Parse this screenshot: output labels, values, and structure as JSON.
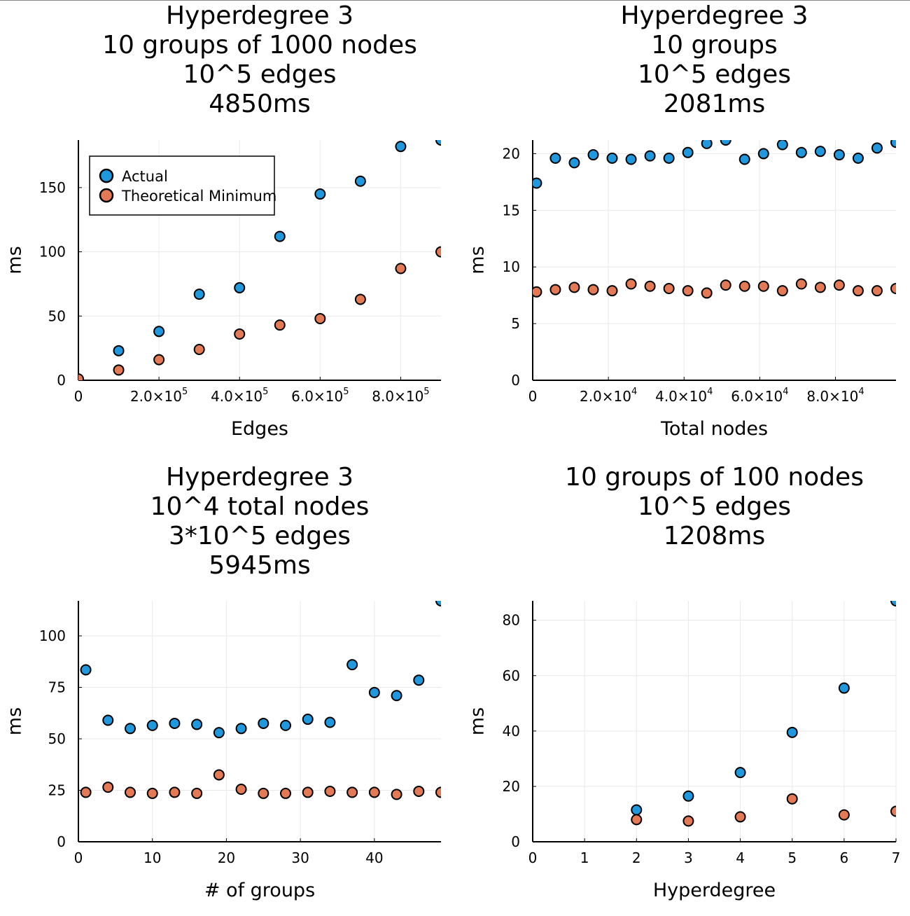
{
  "colors": {
    "actual": "#1f98dd",
    "theoretical": "#e37a55",
    "marker_edge": "#000000"
  },
  "legend": {
    "placement": "top-left",
    "entries": [
      "Actual",
      "Theoretical Minimum"
    ]
  },
  "chart_data": [
    {
      "type": "scatter",
      "title": [
        "Hyperdegree 3",
        "10 groups of 1000 nodes",
        "10^5 edges",
        "4850ms"
      ],
      "xlabel": "Edges",
      "ylabel": "ms",
      "xlim": [
        0,
        900000
      ],
      "ylim": [
        0,
        187
      ],
      "x_tick_values": [
        0,
        200000,
        400000,
        600000,
        800000
      ],
      "x_tick_labels": [
        {
          "base": "0",
          "exp": ""
        },
        {
          "base": "2.0×10",
          "exp": "5"
        },
        {
          "base": "4.0×10",
          "exp": "5"
        },
        {
          "base": "6.0×10",
          "exp": "5"
        },
        {
          "base": "8.0×10",
          "exp": "5"
        }
      ],
      "y_ticks": [
        0,
        50,
        100,
        150
      ],
      "grid": true,
      "legend": true,
      "series": [
        {
          "name": "Actual",
          "x": [
            0,
            100000,
            200000,
            300000,
            400000,
            500000,
            600000,
            700000,
            800000,
            900000
          ],
          "y": [
            0,
            23,
            38,
            67,
            72,
            112,
            145,
            155,
            182,
            187
          ]
        },
        {
          "name": "Theoretical Minimum",
          "x": [
            0,
            100000,
            200000,
            300000,
            400000,
            500000,
            600000,
            700000,
            800000,
            900000
          ],
          "y": [
            1,
            8,
            16,
            24,
            36,
            43,
            48,
            63,
            87,
            100
          ]
        }
      ]
    },
    {
      "type": "scatter",
      "title": [
        "Hyperdegree 3",
        "10 groups",
        "10^5 edges",
        "2081ms"
      ],
      "xlabel": "Total nodes",
      "ylabel": "ms",
      "xlim": [
        0,
        96000
      ],
      "ylim": [
        0,
        21.2
      ],
      "x_tick_values": [
        0,
        20000,
        40000,
        60000,
        80000
      ],
      "x_tick_labels": [
        {
          "base": "0",
          "exp": ""
        },
        {
          "base": "2.0×10",
          "exp": "4"
        },
        {
          "base": "4.0×10",
          "exp": "4"
        },
        {
          "base": "6.0×10",
          "exp": "4"
        },
        {
          "base": "8.0×10",
          "exp": "4"
        }
      ],
      "y_ticks": [
        0,
        5,
        10,
        15,
        20
      ],
      "grid": true,
      "legend": false,
      "series": [
        {
          "name": "Actual",
          "x": [
            1000,
            6000,
            11000,
            16000,
            21000,
            26000,
            31000,
            36000,
            41000,
            46000,
            51000,
            56000,
            61000,
            66000,
            71000,
            76000,
            81000,
            86000,
            91000,
            96000
          ],
          "y": [
            17.4,
            19.6,
            19.2,
            19.9,
            19.6,
            19.5,
            19.8,
            19.6,
            20.1,
            20.9,
            21.2,
            19.5,
            20.0,
            20.8,
            20.1,
            20.2,
            19.9,
            19.6,
            20.5,
            21.0
          ]
        },
        {
          "name": "Theoretical Minimum",
          "x": [
            1000,
            6000,
            11000,
            16000,
            21000,
            26000,
            31000,
            36000,
            41000,
            46000,
            51000,
            56000,
            61000,
            66000,
            71000,
            76000,
            81000,
            86000,
            91000,
            96000
          ],
          "y": [
            7.8,
            8.0,
            8.2,
            8.0,
            7.9,
            8.5,
            8.3,
            8.1,
            7.9,
            7.7,
            8.4,
            8.3,
            8.3,
            7.9,
            8.5,
            8.2,
            8.4,
            7.9,
            7.9,
            8.1
          ]
        }
      ]
    },
    {
      "type": "scatter",
      "title": [
        "Hyperdegree 3",
        "10^4 total nodes",
        "3*10^5 edges",
        "5945ms"
      ],
      "xlabel": "# of groups",
      "ylabel": "ms",
      "xlim": [
        0,
        49
      ],
      "ylim": [
        0,
        117
      ],
      "x_tick_values": [
        0,
        10,
        20,
        30,
        40
      ],
      "x_tick_labels": [
        {
          "base": "0",
          "exp": ""
        },
        {
          "base": "10",
          "exp": ""
        },
        {
          "base": "20",
          "exp": ""
        },
        {
          "base": "30",
          "exp": ""
        },
        {
          "base": "40",
          "exp": ""
        }
      ],
      "y_ticks": [
        0,
        25,
        50,
        75,
        100
      ],
      "grid": true,
      "legend": false,
      "series": [
        {
          "name": "Actual",
          "x": [
            1,
            4,
            7,
            10,
            13,
            16,
            19,
            22,
            25,
            28,
            31,
            34,
            37,
            40,
            43,
            46,
            49
          ],
          "y": [
            83.5,
            59,
            55,
            56.5,
            57.5,
            57,
            53,
            55,
            57.5,
            56.5,
            59.5,
            58,
            86,
            72.5,
            71,
            78.5,
            117
          ]
        },
        {
          "name": "Theoretical Minimum",
          "x": [
            1,
            4,
            7,
            10,
            13,
            16,
            19,
            22,
            25,
            28,
            31,
            34,
            37,
            40,
            43,
            46,
            49
          ],
          "y": [
            24,
            26.5,
            24,
            23.5,
            24,
            23.5,
            32.5,
            25.5,
            23.5,
            23.5,
            24,
            24.5,
            24,
            24,
            23,
            24.5,
            24
          ]
        }
      ]
    },
    {
      "type": "scatter",
      "title": [
        "10 groups of 100 nodes",
        "10^5 edges",
        "1208ms"
      ],
      "xlabel": "Hyperdegree",
      "ylabel": "ms",
      "xlim": [
        0,
        7
      ],
      "ylim": [
        0,
        87
      ],
      "x_tick_values": [
        0,
        1,
        2,
        3,
        4,
        5,
        6,
        7
      ],
      "x_tick_labels": [
        {
          "base": "0",
          "exp": ""
        },
        {
          "base": "1",
          "exp": ""
        },
        {
          "base": "2",
          "exp": ""
        },
        {
          "base": "3",
          "exp": ""
        },
        {
          "base": "4",
          "exp": ""
        },
        {
          "base": "5",
          "exp": ""
        },
        {
          "base": "6",
          "exp": ""
        },
        {
          "base": "7",
          "exp": ""
        }
      ],
      "y_ticks": [
        0,
        20,
        40,
        60,
        80
      ],
      "grid": true,
      "legend": false,
      "series": [
        {
          "name": "Actual",
          "x": [
            2,
            3,
            4,
            5,
            6,
            7
          ],
          "y": [
            11.5,
            16.5,
            25,
            39.5,
            55.5,
            87
          ]
        },
        {
          "name": "Theoretical Minimum",
          "x": [
            2,
            3,
            4,
            5,
            6,
            7
          ],
          "y": [
            8,
            7.5,
            9,
            15.5,
            9.7,
            11
          ]
        }
      ]
    }
  ]
}
